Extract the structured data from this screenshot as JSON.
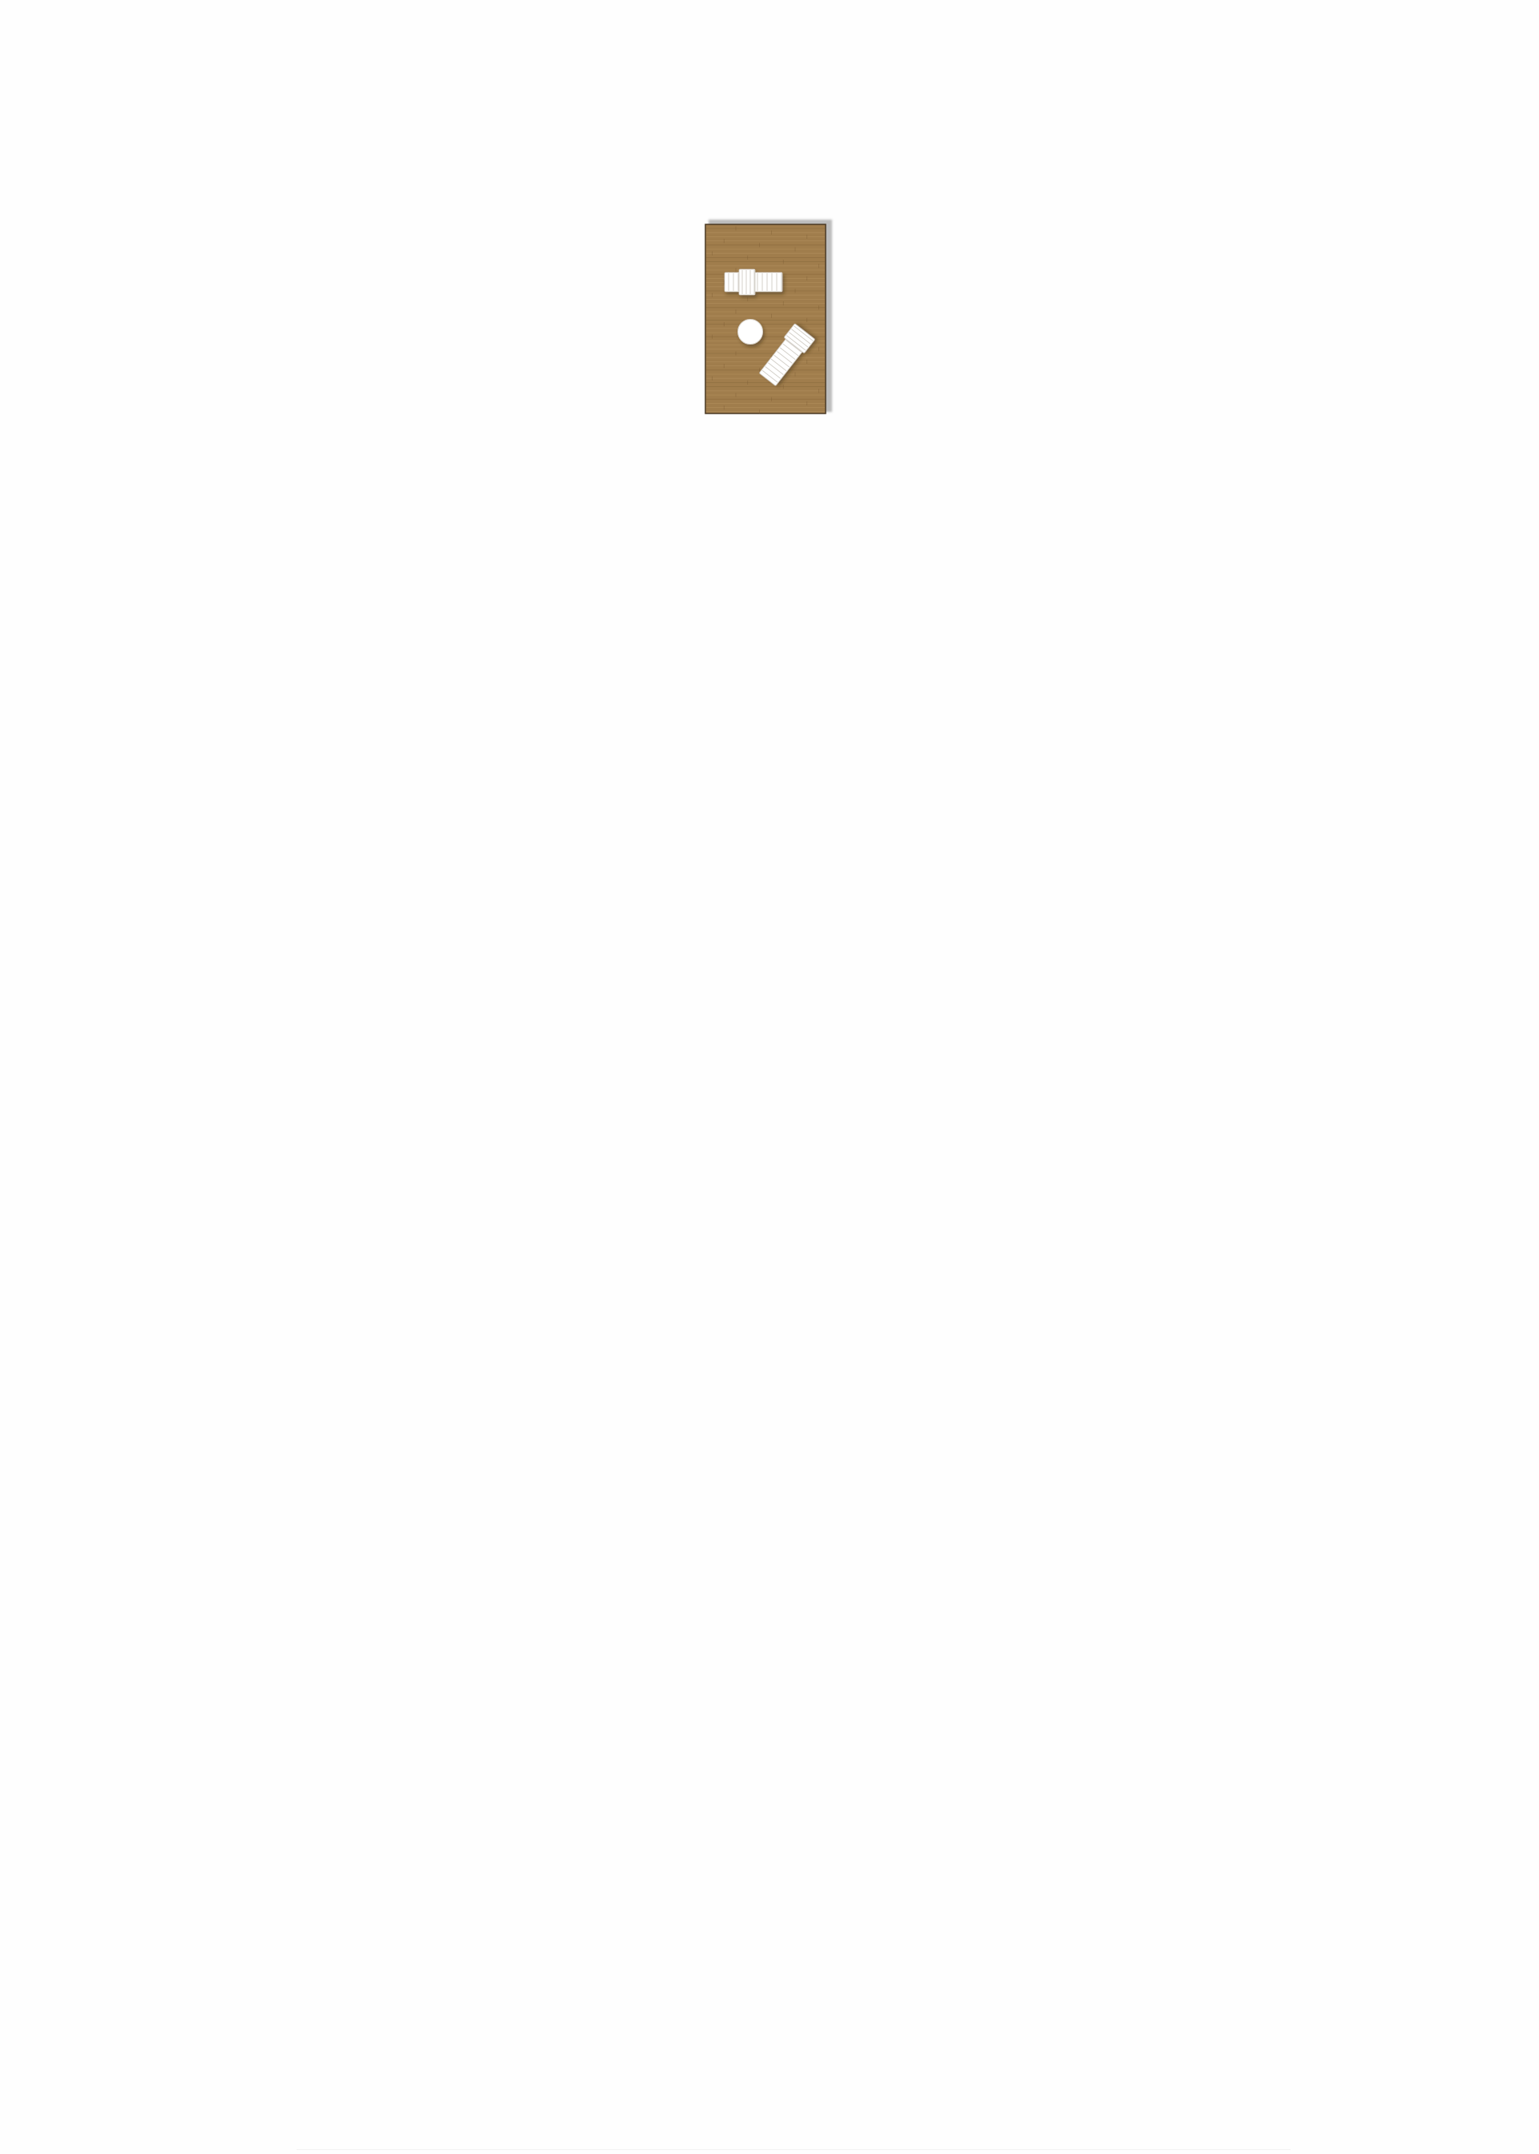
{
  "plan": {
    "elements": [
      "wooden-deck",
      "sun-lounger",
      "round-side-table",
      "sun-lounger"
    ],
    "deck_color": "#a07d4c",
    "deck_edge_color": "#4a3a24",
    "shadow_color": "#b9b9b9",
    "furniture_color": "#ffffff"
  }
}
